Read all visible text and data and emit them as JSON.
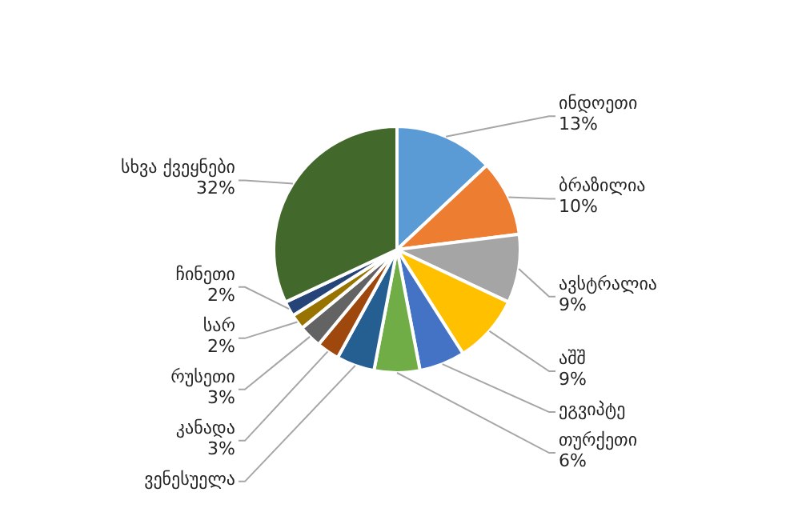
{
  "chart_data": {
    "type": "pie",
    "categories": [
      "ინდოეთი",
      "ბრაზილია",
      "ავსტრალია",
      "აშშ",
      "ეგვიპტე",
      "თურქეთი",
      "ვენესუელა",
      "კანადა",
      "რუსეთი",
      "სარ",
      "ჩინეთი",
      "სხვა ქვეყნები"
    ],
    "values": [
      13,
      10,
      9,
      9,
      6,
      6,
      5,
      3,
      3,
      2,
      2,
      32
    ],
    "colors": [
      "#5b9bd5",
      "#ed7d31",
      "#a5a5a5",
      "#ffc000",
      "#4472c4",
      "#70ad47",
      "#255e91",
      "#9e480e",
      "#636363",
      "#997300",
      "#264478",
      "#43682b"
    ],
    "value_labels": [
      "13%",
      "10%",
      "9%",
      "9%",
      null,
      "6%",
      null,
      "3%",
      "3%",
      "2%",
      "2%",
      "32%"
    ],
    "legend": false
  }
}
